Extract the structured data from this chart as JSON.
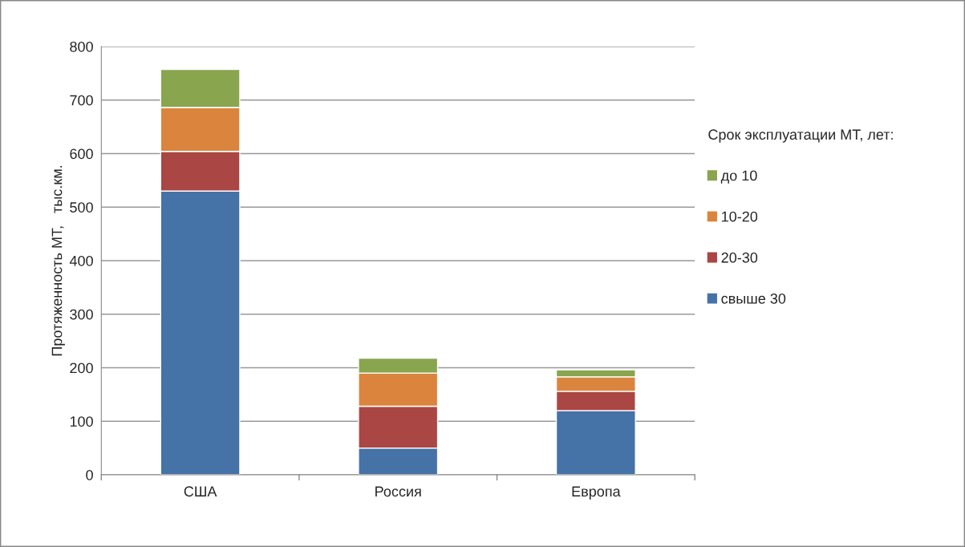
{
  "chart_data": {
    "type": "bar",
    "stacked": true,
    "categories": [
      "США",
      "Россия",
      "Европа"
    ],
    "series": [
      {
        "name": "свыше 30",
        "color": "#4572a7",
        "values": [
          530,
          50,
          120
        ]
      },
      {
        "name": "20-30",
        "color": "#aa4643",
        "values": [
          74,
          78,
          36
        ]
      },
      {
        "name": "10-20",
        "color": "#db843d",
        "values": [
          82,
          62,
          27
        ]
      },
      {
        "name": "до 10",
        "color": "#89a54e",
        "values": [
          71,
          28,
          13
        ]
      }
    ],
    "ylabel": "Протяженность МТ,   тыс.км.",
    "legend_title": "Срок эксплуатации МТ, лет:",
    "legend": "right",
    "ylim": [
      0,
      800
    ],
    "yticks": [
      0,
      100,
      200,
      300,
      400,
      500,
      600,
      700,
      800
    ],
    "grid": "y"
  }
}
